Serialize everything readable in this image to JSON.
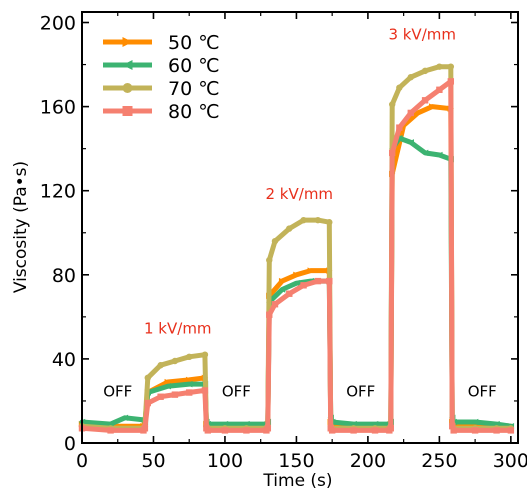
{
  "chart_data": {
    "type": "line",
    "xlabel": "Time (s)",
    "ylabel": "Viscosity (Pa•s)",
    "xlim": [
      0,
      305
    ],
    "ylim": [
      0,
      205
    ],
    "xticks": [
      0,
      50,
      100,
      150,
      200,
      250,
      300
    ],
    "yticks": [
      0,
      40,
      80,
      120,
      160,
      200
    ],
    "grid": false,
    "legend_position": "top-left",
    "annotation_color": "#e8301c",
    "annotations": [
      {
        "text": "OFF",
        "x": 25,
        "y": 22,
        "color": "#000000"
      },
      {
        "text": "1 kV/mm",
        "x": 67,
        "y": 52,
        "color": "#e8301c"
      },
      {
        "text": "OFF",
        "x": 108,
        "y": 22,
        "color": "#000000"
      },
      {
        "text": "2 kV/mm",
        "x": 152,
        "y": 116,
        "color": "#e8301c"
      },
      {
        "text": "OFF",
        "x": 195,
        "y": 22,
        "color": "#000000"
      },
      {
        "text": "3 kV/mm",
        "x": 238,
        "y": 192,
        "color": "#e8301c"
      },
      {
        "text": "OFF",
        "x": 280,
        "y": 22,
        "color": "#000000"
      }
    ],
    "series": [
      {
        "name": "50 ℃",
        "color": "#ff8c00",
        "marker": "triangle-right",
        "x": [
          0,
          20,
          43,
          44,
          46,
          60,
          75,
          86,
          87,
          88,
          100,
          115,
          129,
          130,
          131,
          140,
          150,
          160,
          173,
          174,
          175,
          190,
          205,
          215,
          216,
          217,
          225,
          235,
          245,
          258,
          259,
          260,
          275,
          290,
          300
        ],
        "values": [
          9,
          8,
          8,
          9,
          24,
          29,
          30,
          31,
          9,
          8,
          8,
          8,
          8,
          9,
          70,
          77,
          80,
          82,
          82,
          10,
          8,
          8,
          8,
          8,
          9,
          128,
          151,
          157,
          160,
          159,
          10,
          8,
          8,
          8,
          8
        ]
      },
      {
        "name": "60 ℃",
        "color": "#3cb371",
        "marker": "triangle-left",
        "x": [
          0,
          20,
          30,
          43,
          44,
          46,
          60,
          75,
          86,
          87,
          88,
          100,
          115,
          129,
          130,
          131,
          140,
          150,
          160,
          173,
          174,
          175,
          190,
          205,
          215,
          216,
          217,
          222,
          230,
          240,
          250,
          258,
          259,
          260,
          275,
          290,
          300
        ],
        "values": [
          10,
          9,
          12,
          11,
          10,
          24,
          27,
          28,
          28,
          10,
          9,
          9,
          9,
          9,
          10,
          67,
          73,
          76,
          77,
          77,
          12,
          10,
          9,
          9,
          9,
          10,
          140,
          145,
          143,
          138,
          137,
          135,
          12,
          10,
          10,
          9,
          8
        ]
      },
      {
        "name": "70 ℃",
        "color": "#c2b359",
        "marker": "circle",
        "x": [
          0,
          20,
          43,
          44,
          46,
          55,
          65,
          75,
          86,
          87,
          88,
          100,
          115,
          129,
          130,
          131,
          135,
          145,
          155,
          165,
          173,
          174,
          175,
          190,
          205,
          215,
          216,
          217,
          222,
          230,
          240,
          250,
          258,
          259,
          260,
          275,
          290,
          300
        ],
        "values": [
          8,
          7,
          7,
          8,
          31,
          37,
          39,
          41,
          42,
          8,
          7,
          7,
          7,
          7,
          8,
          87,
          96,
          102,
          106,
          106,
          105,
          8,
          7,
          7,
          7,
          7,
          8,
          161,
          169,
          174,
          177,
          179,
          179,
          9,
          7,
          7,
          7,
          7
        ]
      },
      {
        "name": "80 ℃",
        "color": "#f58070",
        "marker": "square",
        "x": [
          0,
          20,
          43,
          44,
          46,
          55,
          65,
          75,
          86,
          87,
          88,
          100,
          115,
          129,
          130,
          131,
          135,
          145,
          155,
          165,
          173,
          174,
          175,
          190,
          205,
          215,
          216,
          217,
          222,
          230,
          240,
          250,
          258,
          259,
          260,
          275,
          290,
          300
        ],
        "values": [
          7,
          6,
          6,
          7,
          19,
          22,
          23,
          24,
          25,
          7,
          6,
          6,
          6,
          6,
          7,
          61,
          66,
          71,
          75,
          77,
          77,
          7,
          6,
          6,
          6,
          6,
          7,
          138,
          150,
          157,
          163,
          168,
          172,
          8,
          6,
          6,
          6,
          6
        ]
      }
    ]
  }
}
